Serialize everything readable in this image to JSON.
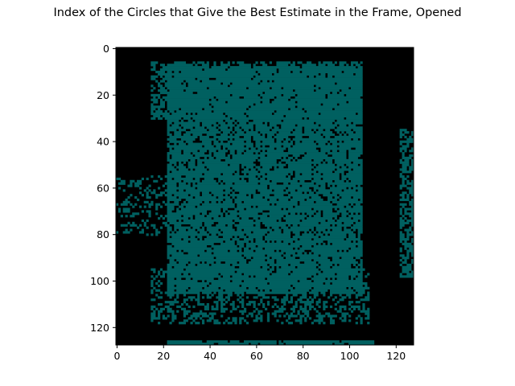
{
  "chart_data": {
    "type": "heatmap",
    "title": "Index of the Circles that Give the Best Estimate in the Frame, Opened",
    "xlabel": "",
    "ylabel": "",
    "xlim": [
      -0.5,
      127.5
    ],
    "ylim": [
      127.5,
      -0.5
    ],
    "grid": false,
    "legend": "none",
    "x_ticks": [
      0,
      20,
      40,
      60,
      80,
      100,
      120
    ],
    "y_ticks": [
      0,
      20,
      40,
      60,
      80,
      100,
      120
    ],
    "x_tick_labels": [
      "0",
      "20",
      "40",
      "60",
      "80",
      "100",
      "120"
    ],
    "y_tick_labels": [
      "0",
      "20",
      "40",
      "60",
      "80",
      "100",
      "120"
    ],
    "image_size": [
      128,
      128
    ],
    "colors": {
      "background": "#000000",
      "foreground": "#006060"
    },
    "regions": [
      {
        "label": "main blob",
        "x_range": [
          22,
          105
        ],
        "y_range": [
          8,
          105
        ],
        "density": 0.85
      },
      {
        "label": "upper fringe",
        "x_range": [
          15,
          105
        ],
        "y_range": [
          6,
          30
        ],
        "density": 0.55
      },
      {
        "label": "lower fringe",
        "x_range": [
          15,
          108
        ],
        "y_range": [
          95,
          118
        ],
        "density": 0.4
      },
      {
        "label": "left scatter",
        "x_range": [
          0,
          22
        ],
        "y_range": [
          55,
          80
        ],
        "density": 0.25
      },
      {
        "label": "right edge strip",
        "x_range": [
          122,
          127
        ],
        "y_range": [
          35,
          98
        ],
        "density": 0.6
      },
      {
        "label": "bottom line",
        "x_range": [
          22,
          110
        ],
        "y_range": [
          126,
          127
        ],
        "density": 0.9
      }
    ]
  }
}
